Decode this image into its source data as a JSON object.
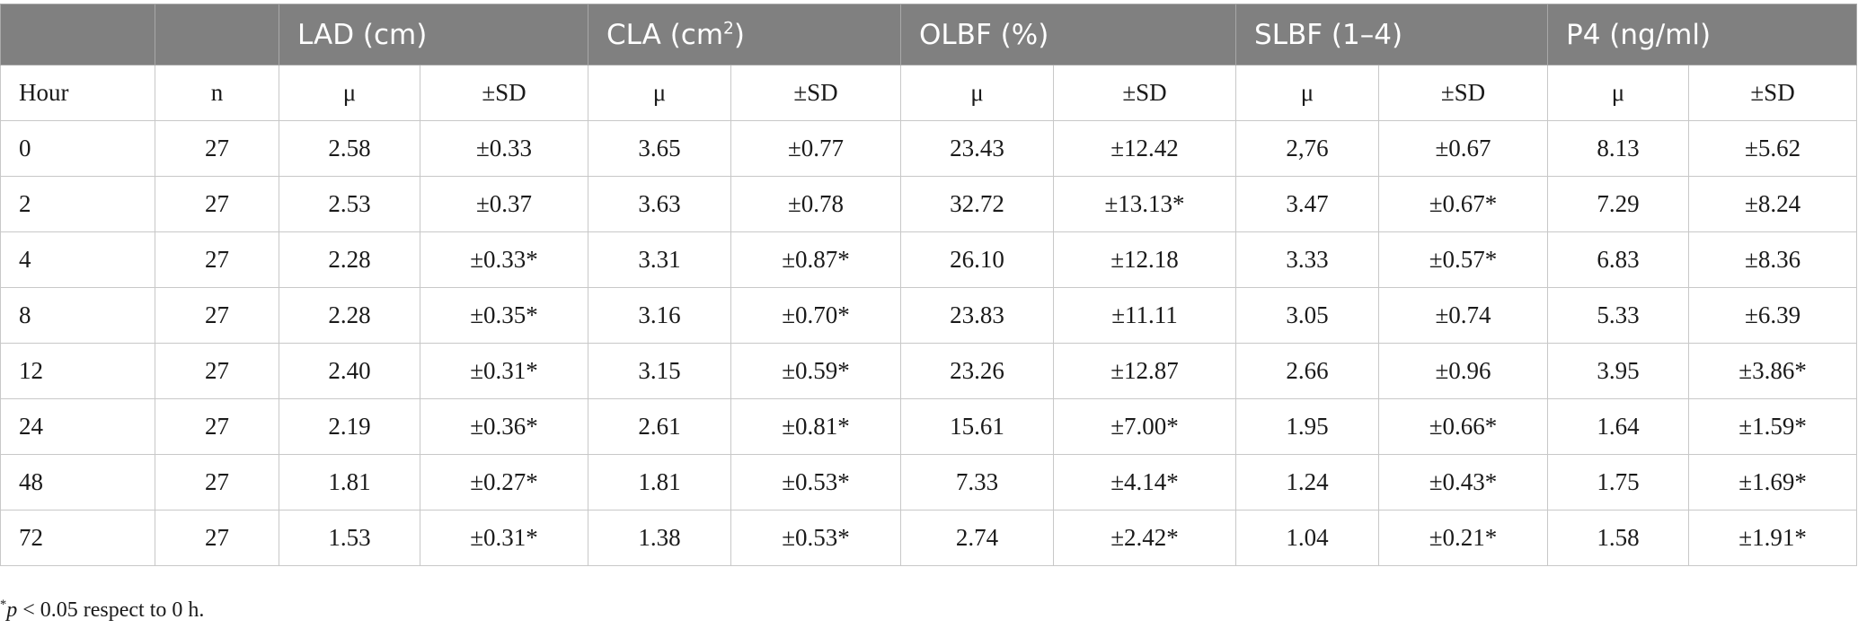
{
  "header": {
    "groups": [
      {
        "label": "LAD (cm)",
        "sup": ""
      },
      {
        "label": "CLA (cm",
        "sup": "2",
        "close": ")"
      },
      {
        "label": "OLBF (%)",
        "sup": ""
      },
      {
        "label": "SLBF (1–4)",
        "sup": ""
      },
      {
        "label": "P4 (ng/ml)",
        "sup": ""
      }
    ],
    "hour_label": "Hour",
    "n_label": "n",
    "mu_label": "μ",
    "sd_label": "±SD"
  },
  "rows": [
    {
      "hour": "0",
      "n": "27",
      "vals": [
        "2.58",
        "±0.33",
        "3.65",
        "±0.77",
        "23.43",
        "±12.42",
        "2,76",
        "±0.67",
        "8.13",
        "±5.62"
      ]
    },
    {
      "hour": "2",
      "n": "27",
      "vals": [
        "2.53",
        "±0.37",
        "3.63",
        "±0.78",
        "32.72",
        "±13.13*",
        "3.47",
        "±0.67*",
        "7.29",
        "±8.24"
      ]
    },
    {
      "hour": "4",
      "n": "27",
      "vals": [
        "2.28",
        "±0.33*",
        "3.31",
        "±0.87*",
        "26.10",
        "±12.18",
        "3.33",
        "±0.57*",
        "6.83",
        "±8.36"
      ]
    },
    {
      "hour": "8",
      "n": "27",
      "vals": [
        "2.28",
        "±0.35*",
        "3.16",
        "±0.70*",
        "23.83",
        "±11.11",
        "3.05",
        "±0.74",
        "5.33",
        "±6.39"
      ]
    },
    {
      "hour": "12",
      "n": "27",
      "vals": [
        "2.40",
        "±0.31*",
        "3.15",
        "±0.59*",
        "23.26",
        "±12.87",
        "2.66",
        "±0.96",
        "3.95",
        "±3.86*"
      ]
    },
    {
      "hour": "24",
      "n": "27",
      "vals": [
        "2.19",
        "±0.36*",
        "2.61",
        "±0.81*",
        "15.61",
        "±7.00*",
        "1.95",
        "±0.66*",
        "1.64",
        "±1.59*"
      ]
    },
    {
      "hour": "48",
      "n": "27",
      "vals": [
        "1.81",
        "±0.27*",
        "1.81",
        "±0.53*",
        "7.33",
        "±4.14*",
        "1.24",
        "±0.43*",
        "1.75",
        "±1.69*"
      ]
    },
    {
      "hour": "72",
      "n": "27",
      "vals": [
        "1.53",
        "±0.31*",
        "1.38",
        "±0.53*",
        "2.74",
        "±2.42*",
        "1.04",
        "±0.21*",
        "1.58",
        "±1.91*"
      ]
    }
  ],
  "footnote": {
    "star": "*",
    "p": "p",
    "text": " < 0.05 respect to 0 h."
  }
}
